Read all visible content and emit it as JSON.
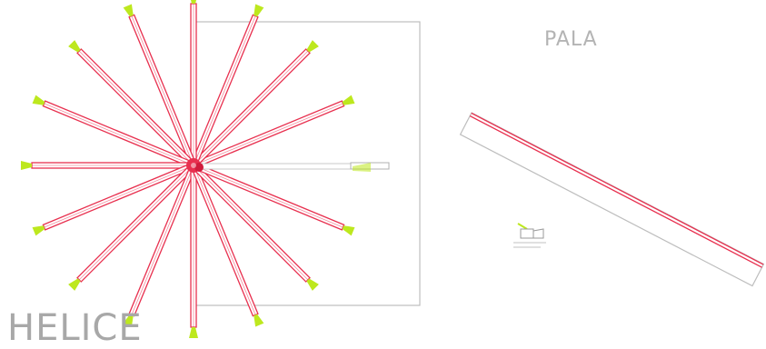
{
  "labels": {
    "helice": "HELICE",
    "pala": "PALA"
  },
  "helice": {
    "blade_count": 16,
    "blade_angle_step_deg": 22.5
  },
  "colors": {
    "blade_outline": "#e8304f",
    "blade_fill": "#ffffff",
    "frame_line": "#bdbdbd",
    "marker_green": "#bde81e",
    "label_gray": "#a8a8a8"
  }
}
